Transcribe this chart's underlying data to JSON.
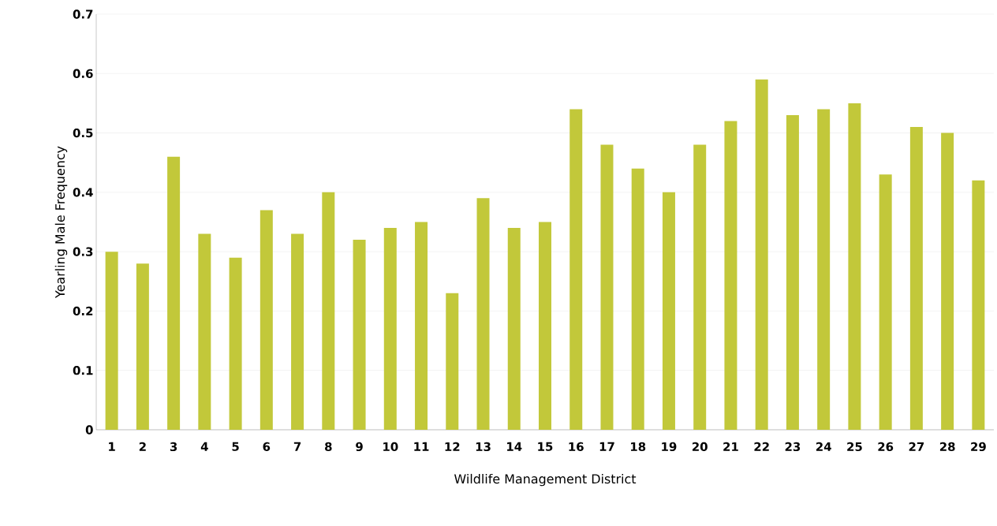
{
  "chart_data": {
    "type": "bar",
    "xlabel": "Wildlife Management District",
    "ylabel": "Yearling Male Frequency",
    "categories": [
      "1",
      "2",
      "3",
      "4",
      "5",
      "6",
      "7",
      "8",
      "9",
      "10",
      "11",
      "12",
      "13",
      "14",
      "15",
      "16",
      "17",
      "18",
      "19",
      "20",
      "21",
      "22",
      "23",
      "24",
      "25",
      "26",
      "27",
      "28",
      "29"
    ],
    "values": [
      0.3,
      0.28,
      0.46,
      0.33,
      0.29,
      0.37,
      0.33,
      0.4,
      0.32,
      0.34,
      0.35,
      0.23,
      0.39,
      0.34,
      0.35,
      0.54,
      0.48,
      0.44,
      0.4,
      0.48,
      0.52,
      0.59,
      0.53,
      0.54,
      0.55,
      0.43,
      0.51,
      0.5,
      0.42
    ],
    "color": "#c2c83a",
    "ylim": [
      0,
      0.7
    ],
    "yticks": [
      0,
      0.1,
      0.2,
      0.3,
      0.4,
      0.5,
      0.6,
      0.7
    ],
    "grid": "y"
  }
}
